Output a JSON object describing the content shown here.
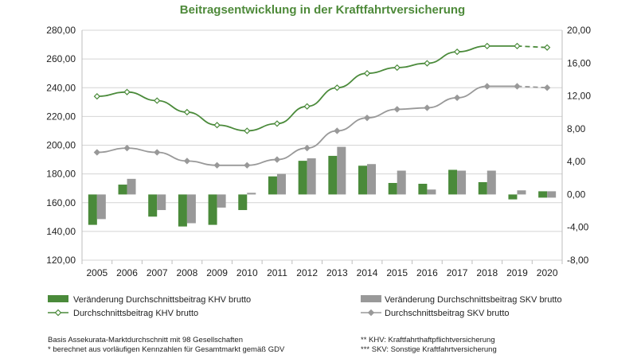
{
  "chart_data": {
    "type": "bar",
    "title": "Beitragsentwicklung in der Kraftfahrtversicherung",
    "categories": [
      "2005",
      "2006",
      "2007",
      "2008",
      "2009",
      "2010",
      "2011",
      "2012",
      "2013",
      "2014",
      "2015",
      "2016",
      "2017",
      "2018",
      "2019",
      "2020"
    ],
    "left_axis": {
      "ylim": [
        120,
        280
      ],
      "ticks": [
        "120,00",
        "140,00",
        "160,00",
        "180,00",
        "200,00",
        "220,00",
        "240,00",
        "260,00",
        "280,00"
      ],
      "tick_values": [
        120,
        140,
        160,
        180,
        200,
        220,
        240,
        260,
        280
      ]
    },
    "right_axis": {
      "ylim": [
        -8,
        20
      ],
      "ticks": [
        "-8,00",
        "-4,00",
        "0,00",
        "4,00",
        "8,00",
        "12,00",
        "16,00",
        "20,00"
      ],
      "tick_values": [
        -8,
        -4,
        0,
        4,
        8,
        12,
        16,
        20
      ]
    },
    "grid": true,
    "series": [
      {
        "name": "Veränderung Durchschnittsbeitrag KHV brutto",
        "kind": "bar",
        "axis": "right",
        "color": "#4a8a3a",
        "values": [
          -3.7,
          1.2,
          -2.7,
          -3.9,
          -3.7,
          -1.9,
          2.2,
          4.1,
          4.7,
          3.5,
          1.4,
          1.3,
          3.0,
          1.5,
          -0.6,
          0.0
        ]
      },
      {
        "name": "Veränderung Durchschnittsbeitrag SKV brutto",
        "kind": "bar",
        "axis": "right",
        "color": "#999999",
        "values": [
          -3.0,
          1.9,
          -1.9,
          -3.5,
          -1.6,
          0.2,
          2.5,
          4.4,
          5.8,
          3.7,
          2.9,
          0.6,
          2.9,
          2.9,
          0.5,
          0.0
        ]
      },
      {
        "name": "Durchschnittsbeitrag KHV brutto",
        "kind": "line",
        "axis": "left",
        "color": "#4a8a3a",
        "values": [
          234,
          237,
          231,
          223,
          214,
          210,
          215,
          227,
          240,
          250,
          254,
          257,
          265,
          269,
          269,
          268
        ],
        "dashed_from_index": 14
      },
      {
        "name": "Durchschnittsbeitrag SKV brutto",
        "kind": "line",
        "axis": "left",
        "color": "#999999",
        "values": [
          195,
          198,
          195,
          189,
          186,
          186,
          190,
          198,
          210,
          219,
          225,
          226,
          233,
          241,
          241,
          240
        ],
        "dashed_from_index": 14
      }
    ],
    "legend_position": "bottom",
    "legend": {
      "khv_bar": "Veränderung Durchschnittsbeitrag KHV brutto",
      "skv_bar": "Veränderung Durchschnittsbeitrag SKV brutto",
      "khv_line": "Durchschnittsbeitrag KHV brutto",
      "skv_line": "Durchschnittsbeitrag SKV brutto"
    }
  },
  "footnotes": {
    "left_1": "Basis Assekurata-Marktdurchschnitt mit 98 Gesellschaften",
    "left_2": "* berechnet aus vorläufigen Kennzahlen für Gesamtmarkt gemäß GDV",
    "right_1": "** KHV: Kraftfahrthaftpflichtversicherung",
    "right_2": "*** SKV: Sonstige Kraftfahrtversicherung"
  }
}
